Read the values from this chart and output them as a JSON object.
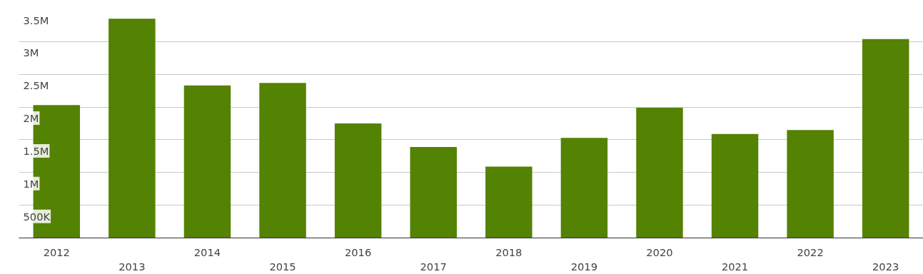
{
  "chart_data": {
    "type": "bar",
    "categories": [
      "2012",
      "2013",
      "2014",
      "2015",
      "2016",
      "2017",
      "2018",
      "2019",
      "2020",
      "2021",
      "2022",
      "2023"
    ],
    "values": [
      2030000,
      3350000,
      2330000,
      2370000,
      1750000,
      1390000,
      1090000,
      1530000,
      1990000,
      1590000,
      1650000,
      3040000
    ],
    "color": "#548203",
    "ylim": [
      0,
      3500000
    ],
    "yticks": [
      {
        "value": 500000,
        "label": "500K"
      },
      {
        "value": 1000000,
        "label": "1M"
      },
      {
        "value": 1500000,
        "label": "1.5M"
      },
      {
        "value": 2000000,
        "label": "2M"
      },
      {
        "value": 2500000,
        "label": "2.5M"
      },
      {
        "value": 3000000,
        "label": "3M"
      },
      {
        "value": 3500000,
        "label": "3.5M"
      }
    ],
    "grid": "y"
  }
}
